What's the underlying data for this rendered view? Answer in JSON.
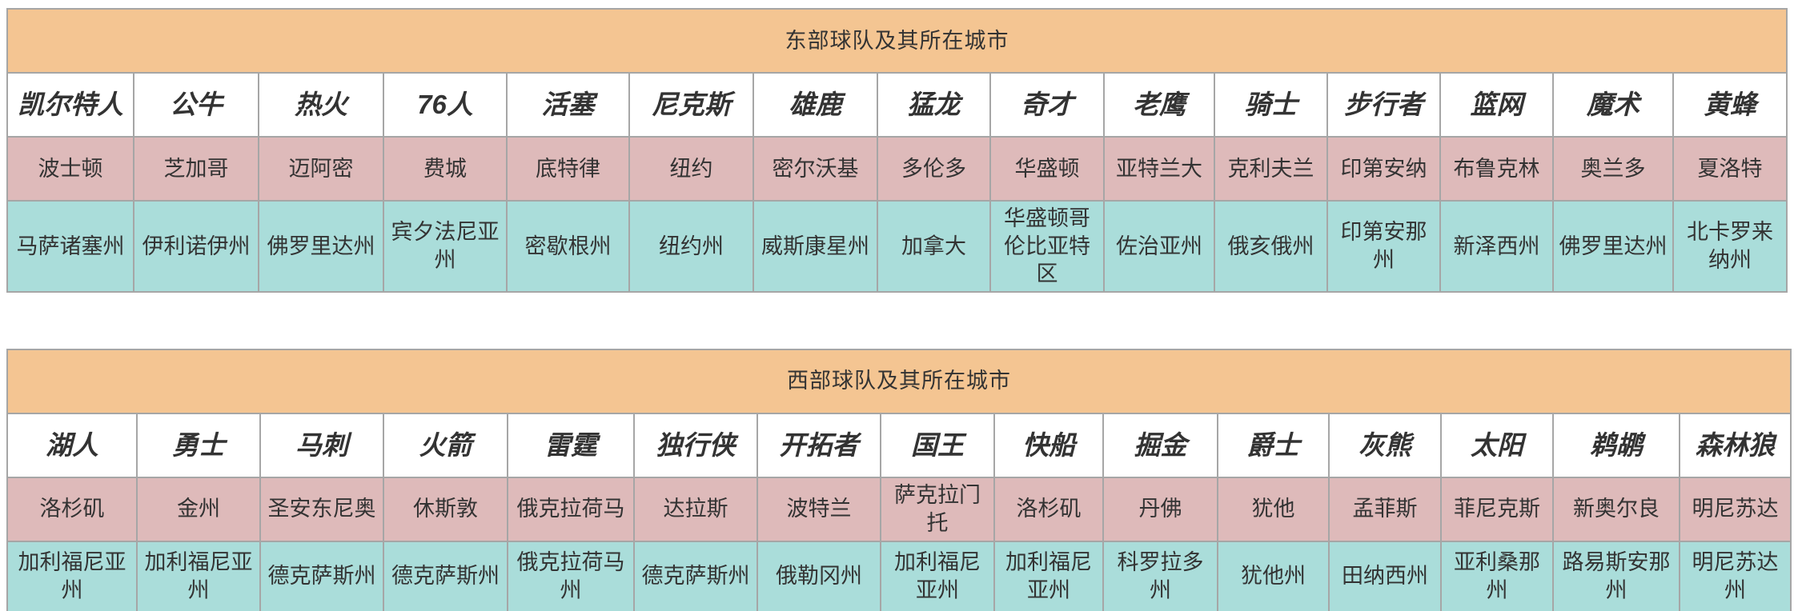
{
  "colors": {
    "title_bg": "#f4c592",
    "team_bg": "#ffffff",
    "city_bg": "#debaba",
    "state_bg": "#aaddda",
    "border": "#a6a6a6",
    "text": "#333333"
  },
  "tables": [
    {
      "title": "东部球队及其所在城市",
      "teams": [
        "凯尔特人",
        "公牛",
        "热火",
        "76人",
        "活塞",
        "尼克斯",
        "雄鹿",
        "猛龙",
        "奇才",
        "老鹰",
        "骑士",
        "步行者",
        "篮网",
        "魔术",
        "黄蜂"
      ],
      "cities": [
        "波士顿",
        "芝加哥",
        "迈阿密",
        "费城",
        "底特律",
        "纽约",
        "密尔沃基",
        "多伦多",
        "华盛顿",
        "亚特兰大",
        "克利夫兰",
        "印第安纳",
        "布鲁克林",
        "奥兰多",
        "夏洛特"
      ],
      "states": [
        "马萨诸塞州",
        "伊利诺伊州",
        "佛罗里达州",
        "宾夕法尼亚州",
        "密歇根州",
        "纽约州",
        "威斯康星州",
        "加拿大",
        "华盛顿哥伦比亚特区",
        "佐治亚州",
        "俄亥俄州",
        "印第安那州",
        "新泽西州",
        "佛罗里达州",
        "北卡罗来纳州"
      ]
    },
    {
      "title": "西部球队及其所在城市",
      "teams": [
        "湖人",
        "勇士",
        "马刺",
        "火箭",
        "雷霆",
        "独行侠",
        "开拓者",
        "国王",
        "快船",
        "掘金",
        "爵士",
        "灰熊",
        "太阳",
        "鹈鹕",
        "森林狼"
      ],
      "cities": [
        "洛杉矶",
        "金州",
        "圣安东尼奥",
        "休斯敦",
        "俄克拉荷马",
        "达拉斯",
        "波特兰",
        "萨克拉门托",
        "洛杉矶",
        "丹佛",
        "犹他",
        "孟菲斯",
        "菲尼克斯",
        "新奥尔良",
        "明尼苏达"
      ],
      "states": [
        "加利福尼亚州",
        "加利福尼亚州",
        "德克萨斯州",
        "德克萨斯州",
        "俄克拉荷马州",
        "德克萨斯州",
        "俄勒冈州",
        "加利福尼亚州",
        "加利福尼亚州",
        "科罗拉多州",
        "犹他州",
        "田纳西州",
        "亚利桑那州",
        "路易斯安那州",
        "明尼苏达州"
      ]
    }
  ]
}
